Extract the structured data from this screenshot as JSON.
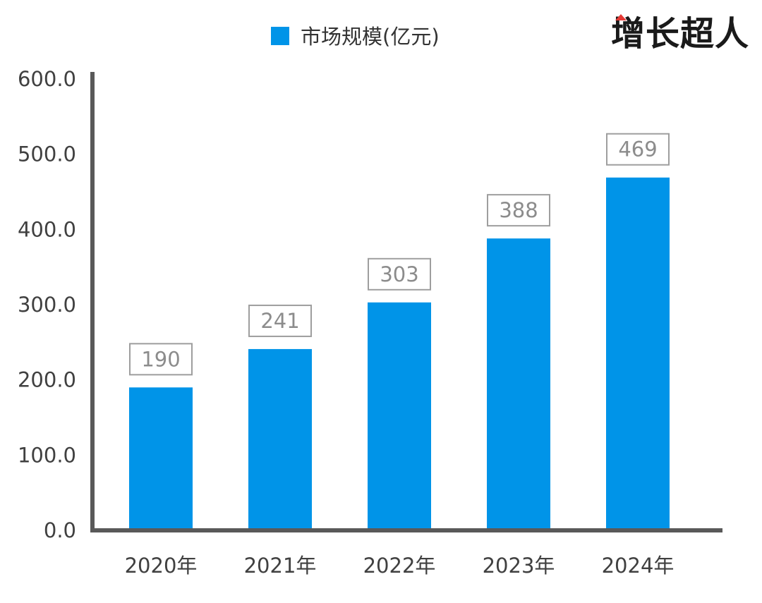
{
  "brand": {
    "logo_text": "增长超人"
  },
  "colors": {
    "bar": "#0094E8",
    "axis": "#595959",
    "data_label_box": "#9e9e9e",
    "logo_accent": "#E53935"
  },
  "chart_data": {
    "type": "bar",
    "categories": [
      "2020年",
      "2021年",
      "2022年",
      "2023年",
      "2024年"
    ],
    "series": [
      {
        "name": "市场规模(亿元)",
        "values": [
          190,
          241,
          303,
          388,
          469
        ],
        "data_labels": [
          "190",
          "241",
          "303",
          "388",
          "469"
        ]
      }
    ],
    "ylim": [
      0,
      600
    ],
    "yticks": [
      0,
      100,
      200,
      300,
      400,
      500,
      600
    ],
    "ytick_labels": [
      "0.0",
      "100.0",
      "200.0",
      "300.0",
      "400.0",
      "500.0",
      "600.0"
    ],
    "legend_position": "top-center",
    "grid": false
  }
}
